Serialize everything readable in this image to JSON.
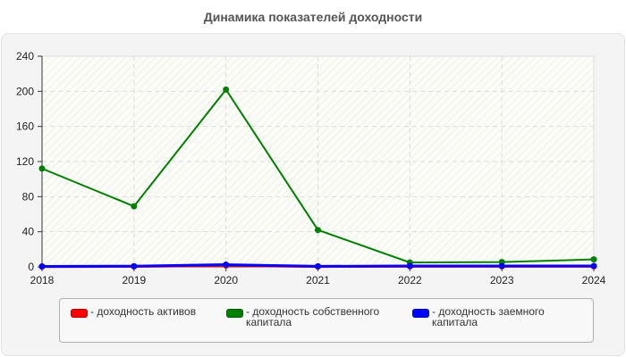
{
  "title": "Динамика показателей доходности",
  "legend": [
    {
      "label": "- доходность активов",
      "color": "#ff0000"
    },
    {
      "label": "- доходность собственного\nкапитала",
      "color": "#008000"
    },
    {
      "label": "- доходность заемного\nкапитала",
      "color": "#0000ff"
    }
  ],
  "chart_data": {
    "type": "line",
    "title": "Динамика показателей доходности",
    "xlabel": "",
    "ylabel": "",
    "categories": [
      "2018",
      "2019",
      "2020",
      "2021",
      "2022",
      "2023",
      "2024"
    ],
    "y_ticks": [
      0,
      40,
      80,
      120,
      160,
      200,
      240
    ],
    "ylim": [
      0,
      240
    ],
    "grid": true,
    "legend_position": "bottom",
    "series": [
      {
        "name": "доходность активов",
        "color": "#ff0000",
        "values": [
          0.3,
          0.5,
          1.5,
          0.4,
          0.6,
          0.6,
          0.6
        ]
      },
      {
        "name": "доходность собственного капитала",
        "color": "#008000",
        "values": [
          112,
          69,
          202,
          42,
          5,
          5.5,
          8.5
        ]
      },
      {
        "name": "доходность заемного капитала",
        "color": "#0000ff",
        "values": [
          0.5,
          0.8,
          2.5,
          0.6,
          1,
          1,
          1
        ]
      }
    ]
  }
}
